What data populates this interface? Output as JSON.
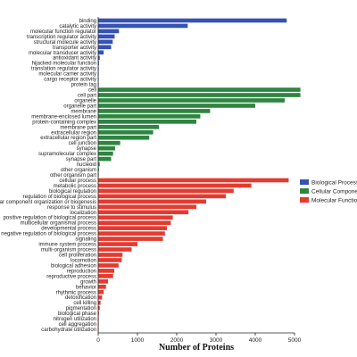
{
  "chart_data": {
    "type": "bar",
    "orientation": "horizontal",
    "xlabel": "Number of Proteins",
    "xlim": [
      0,
      5000
    ],
    "xticks": [
      0,
      1000,
      2000,
      3000,
      4000,
      5000
    ],
    "grid": false,
    "legend_position": "right",
    "series": [
      {
        "name": "Biological Process",
        "color": "#3552b4",
        "categories": [
          "binding",
          "catalytic activity",
          "molecular function regulator",
          "transcription regulator activity",
          "structural molecule activity",
          "transporter activity",
          "molecular transducer activity",
          "antioxidant activity",
          "hijacked molecular function",
          "translation regulator activity",
          "molecular carrier activity",
          "cargo receptor activity",
          "protein tag"
        ],
        "values": [
          4800,
          2280,
          530,
          420,
          370,
          330,
          140,
          40,
          20,
          15,
          10,
          8,
          5
        ]
      },
      {
        "name": "Cellular Component",
        "color": "#2e8540",
        "categories": [
          "cell",
          "cell part",
          "organelle",
          "organelle part",
          "membrane",
          "membrane-enclosed lumen",
          "protein-containing complex",
          "membrane part",
          "extracellular region",
          "extracellular region part",
          "cell junction",
          "synapse",
          "supramolecular complex",
          "synapse part",
          "nucleoid",
          "other organism",
          "other organism part"
        ],
        "values": [
          5150,
          5150,
          4750,
          4000,
          2850,
          2600,
          2500,
          1550,
          1400,
          1300,
          560,
          430,
          380,
          330,
          40,
          20,
          15
        ]
      },
      {
        "name": "Molecular Function",
        "color": "#e53a2f",
        "categories": [
          "cellular process",
          "metabolic process",
          "biological regulation",
          "regulation of biological process",
          "cellular component organization or biogenesis",
          "response to stimulus",
          "localization",
          "positive regulation of biological process",
          "multicellular organismal process",
          "developmental process",
          "negative regulation of biological process",
          "signaling",
          "immune system process",
          "multi-organism process",
          "cell proliferation",
          "locomotion",
          "biological adhesion",
          "reproduction",
          "reproductive process",
          "growth",
          "behavior",
          "rhythmic process",
          "detoxification",
          "cell killing",
          "pigmentation",
          "biological phase",
          "nitrogen utilization",
          "cell aggregation",
          "carbohydrate utilization"
        ],
        "values": [
          4850,
          3900,
          3450,
          3250,
          2750,
          2500,
          2300,
          1900,
          1850,
          1750,
          1700,
          1650,
          1000,
          850,
          620,
          600,
          520,
          410,
          380,
          250,
          200,
          140,
          100,
          60,
          40,
          20,
          15,
          10,
          5
        ]
      }
    ],
    "legend": [
      "Biological Process",
      "Cellular Component",
      "Molecular Function"
    ]
  }
}
